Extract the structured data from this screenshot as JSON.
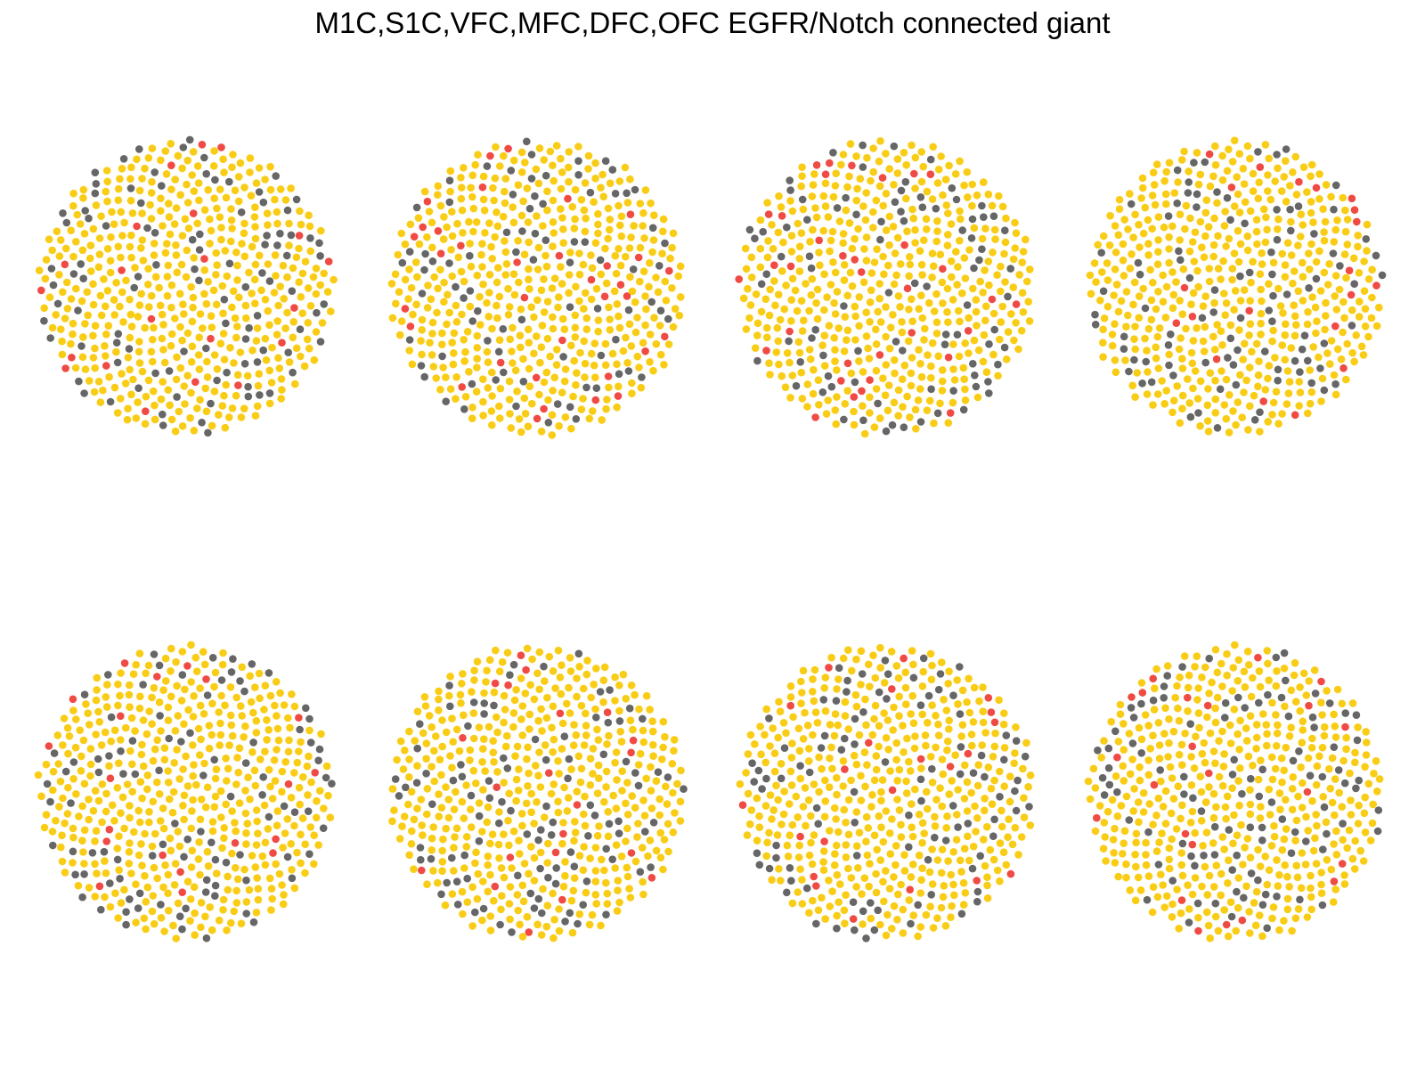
{
  "title": "M1C,S1C,VFC,MFC,DFC,OFC EGFR/Notch connected giant",
  "colors": {
    "common": "#F9CC16",
    "gray": "#666666",
    "highlight": "#F04A44",
    "background": "#FFFFFF"
  },
  "panels": [
    {
      "name": "panel-1",
      "row": 1,
      "col": 1
    },
    {
      "name": "panel-2",
      "row": 1,
      "col": 2
    },
    {
      "name": "panel-3",
      "row": 1,
      "col": 3
    },
    {
      "name": "panel-4",
      "row": 1,
      "col": 4
    },
    {
      "name": "panel-5",
      "row": 2,
      "col": 1
    },
    {
      "name": "panel-6",
      "row": 2,
      "col": 2
    },
    {
      "name": "panel-7",
      "row": 2,
      "col": 3
    },
    {
      "name": "panel-8",
      "row": 2,
      "col": 4
    }
  ]
}
